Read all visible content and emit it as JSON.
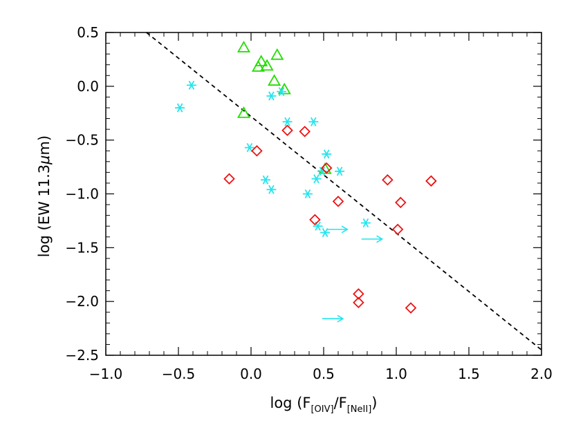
{
  "chart_data": {
    "type": "scatter",
    "title": "",
    "xlabel": "log (F[OIV]/F[NeII])",
    "ylabel": "log (EW 11.3μm)",
    "xlabel_parts": {
      "prefix": "log (F",
      "sub1": "[OIV]",
      "mid": "/F",
      "sub2": "[NeII]",
      "suffix": ")"
    },
    "ylabel_parts": {
      "prefix": "log (EW 11.3",
      "mu": "μ",
      "suffix": "m)"
    },
    "xlim": [
      -1.0,
      2.0
    ],
    "ylim": [
      -2.5,
      0.5
    ],
    "xticks": [
      -1.0,
      -0.5,
      0.0,
      0.5,
      1.0,
      1.5,
      2.0
    ],
    "xtick_labels": [
      "−1.0",
      "−0.5",
      "0.0",
      "0.5",
      "1.0",
      "1.5",
      "2.0"
    ],
    "yticks": [
      0.5,
      0.0,
      -0.5,
      -1.0,
      -1.5,
      -2.0,
      -2.5
    ],
    "ytick_labels": [
      "0.5",
      "0.0",
      "−0.5",
      "−1.0",
      "−1.5",
      "−2.0",
      "−2.5"
    ],
    "grid": false,
    "colors": {
      "triangles": "#22dd00",
      "asterisks": "#22e5ee",
      "diamonds": "#ee1111",
      "arrows": "#22e5ee",
      "fit_line": "#000000"
    },
    "series": [
      {
        "name": "triangles",
        "marker": "triangle",
        "points": [
          [
            -0.05,
            0.36
          ],
          [
            0.07,
            0.23
          ],
          [
            0.05,
            0.18
          ],
          [
            0.11,
            0.19
          ],
          [
            0.18,
            0.29
          ],
          [
            0.16,
            0.05
          ],
          [
            0.23,
            -0.03
          ],
          [
            -0.05,
            -0.25
          ],
          [
            0.51,
            -0.77
          ]
        ]
      },
      {
        "name": "asterisks",
        "marker": "asterisk",
        "points": [
          [
            -0.41,
            0.01
          ],
          [
            -0.49,
            -0.2
          ],
          [
            0.14,
            -0.09
          ],
          [
            0.21,
            -0.05
          ],
          [
            0.25,
            -0.33
          ],
          [
            0.43,
            -0.33
          ],
          [
            -0.01,
            -0.57
          ],
          [
            0.52,
            -0.63
          ],
          [
            0.49,
            -0.79
          ],
          [
            0.61,
            -0.79
          ],
          [
            0.45,
            -0.86
          ],
          [
            0.1,
            -0.87
          ],
          [
            0.14,
            -0.96
          ],
          [
            0.39,
            -1.0
          ],
          [
            0.46,
            -1.3
          ],
          [
            0.51,
            -1.36
          ],
          [
            0.79,
            -1.27
          ]
        ]
      },
      {
        "name": "diamonds",
        "marker": "diamond",
        "points": [
          [
            0.25,
            -0.41
          ],
          [
            0.37,
            -0.42
          ],
          [
            0.04,
            -0.6
          ],
          [
            0.52,
            -0.76
          ],
          [
            -0.15,
            -0.86
          ],
          [
            0.94,
            -0.87
          ],
          [
            1.24,
            -0.88
          ],
          [
            0.6,
            -1.07
          ],
          [
            1.03,
            -1.08
          ],
          [
            0.44,
            -1.24
          ],
          [
            1.01,
            -1.33
          ],
          [
            0.74,
            -1.93
          ],
          [
            0.74,
            -2.01
          ],
          [
            1.1,
            -2.06
          ]
        ]
      },
      {
        "name": "lower-limit arrows",
        "marker": "right-arrow",
        "points": [
          [
            0.52,
            -1.33
          ],
          [
            0.76,
            -1.42
          ],
          [
            0.49,
            -2.16
          ]
        ]
      }
    ],
    "fit_line": {
      "style": "dashed",
      "from": [
        -0.72,
        0.5
      ],
      "to": [
        2.0,
        -2.45
      ]
    }
  }
}
